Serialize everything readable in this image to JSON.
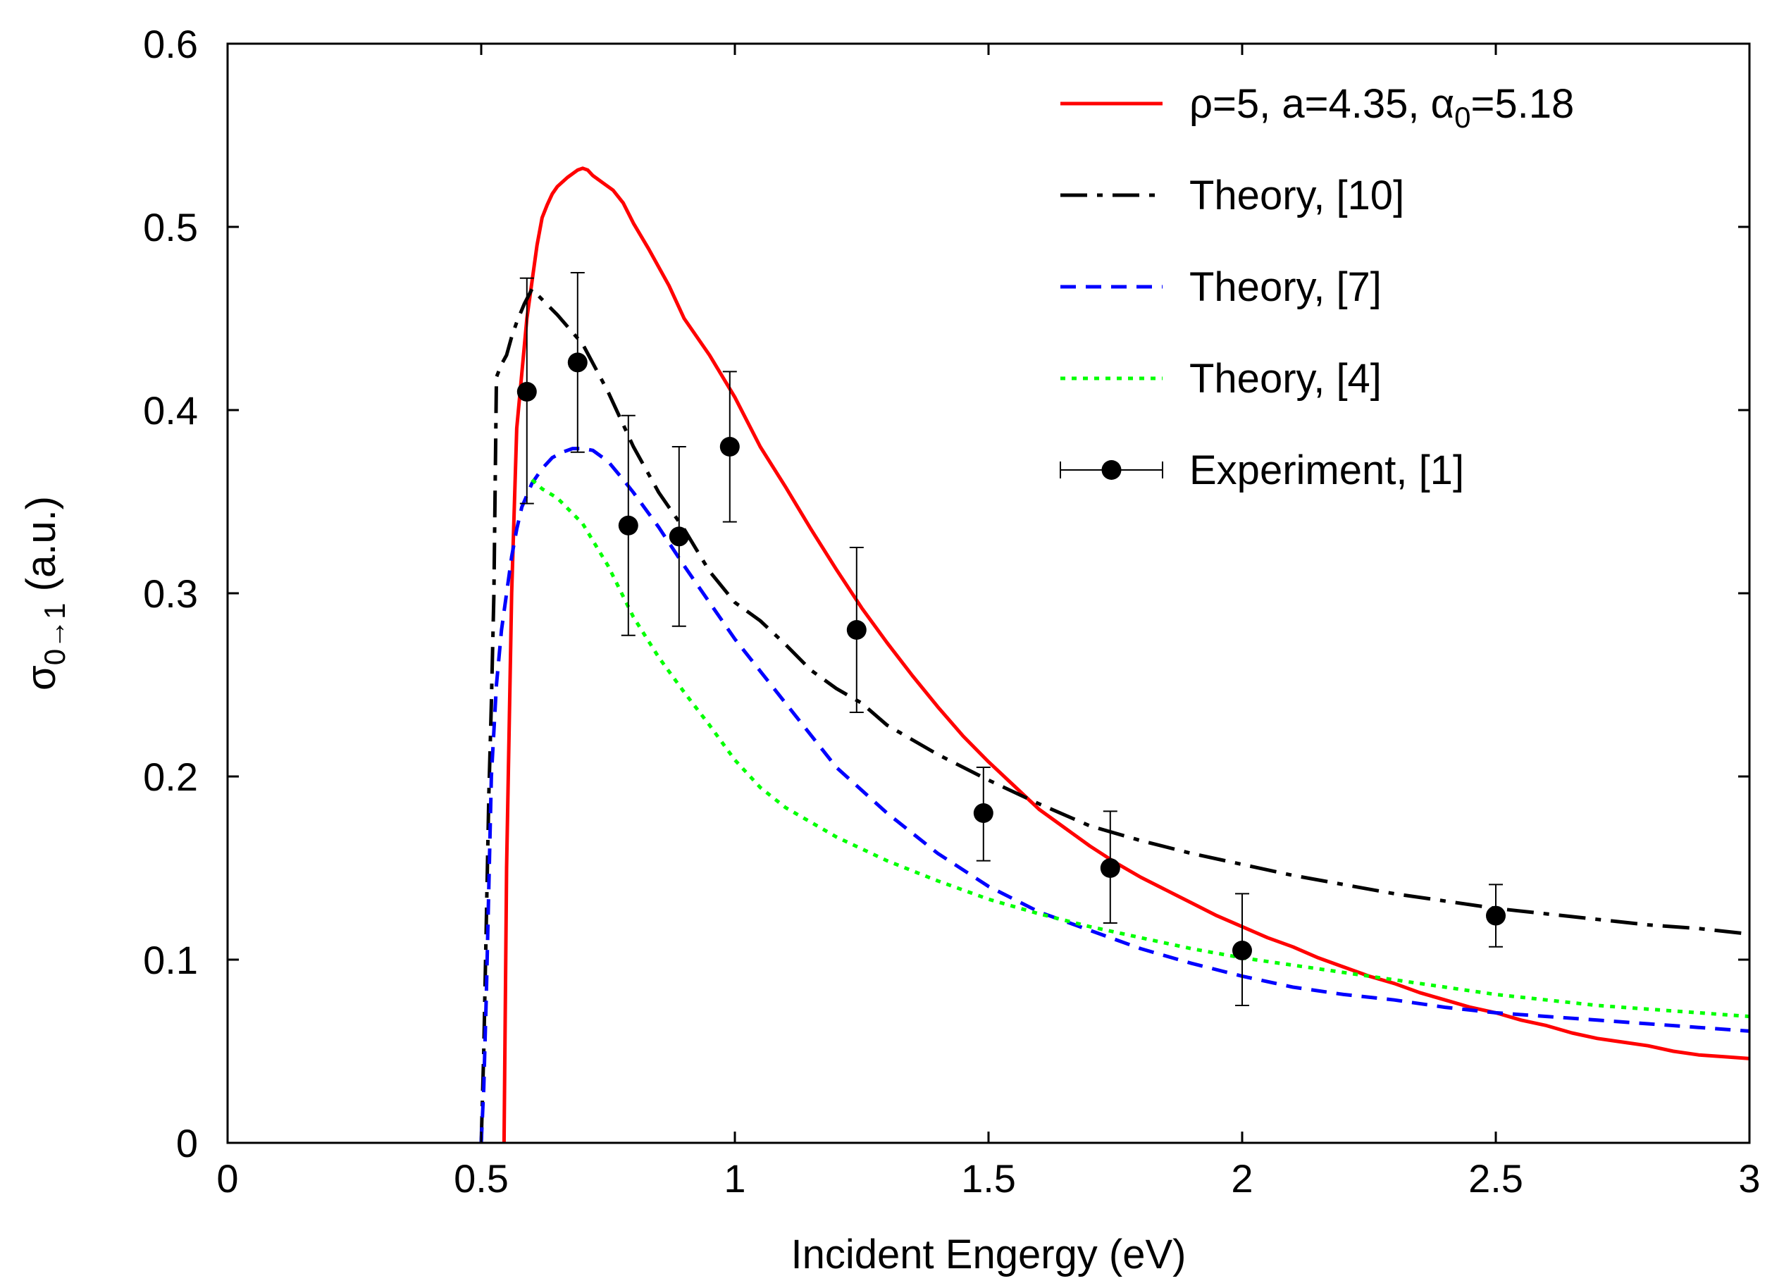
{
  "chart_data": {
    "type": "line",
    "title": "",
    "xlabel": "Incident Engergy (eV)",
    "ylabel": {
      "base": "σ",
      "sub": "0→1",
      "unit": " (a.u.)"
    },
    "xlim": [
      0,
      3
    ],
    "ylim": [
      0,
      0.6
    ],
    "x_ticks": [
      0,
      0.5,
      1,
      1.5,
      2,
      2.5,
      3
    ],
    "x_tick_labels": [
      "0",
      "0.5",
      "1",
      "1.5",
      "2",
      "2.5",
      "3"
    ],
    "y_ticks": [
      0,
      0.1,
      0.2,
      0.3,
      0.4,
      0.5,
      0.6
    ],
    "y_tick_labels": [
      "0",
      "0.1",
      "0.2",
      "0.3",
      "0.4",
      "0.5",
      "0.6"
    ],
    "grid": false,
    "legend_position": "top-right",
    "series": [
      {
        "name": "ρ=5, a=4.35, α0=5.18",
        "legend": {
          "parts": [
            {
              "text": "ρ=5, a=4.35, α",
              "sub": false
            },
            {
              "text": "0",
              "sub": true
            },
            {
              "text": "=5.18",
              "sub": false
            }
          ]
        },
        "style": "solid",
        "color": "#ff0000",
        "x": [
          0.545,
          0.55,
          0.56,
          0.57,
          0.58,
          0.59,
          0.6,
          0.61,
          0.62,
          0.63,
          0.64,
          0.65,
          0.67,
          0.69,
          0.7,
          0.71,
          0.72,
          0.74,
          0.76,
          0.78,
          0.8,
          0.83,
          0.87,
          0.9,
          0.95,
          1.0,
          1.05,
          1.1,
          1.15,
          1.2,
          1.25,
          1.3,
          1.35,
          1.4,
          1.45,
          1.5,
          1.55,
          1.6,
          1.65,
          1.7,
          1.75,
          1.8,
          1.85,
          1.9,
          1.95,
          2.0,
          2.05,
          2.1,
          2.15,
          2.2,
          2.25,
          2.3,
          2.35,
          2.4,
          2.45,
          2.5,
          2.55,
          2.6,
          2.65,
          2.7,
          2.75,
          2.8,
          2.85,
          2.9,
          2.95,
          3.0
        ],
        "y": [
          0.0,
          0.15,
          0.3,
          0.39,
          0.42,
          0.45,
          0.47,
          0.49,
          0.505,
          0.512,
          0.518,
          0.522,
          0.527,
          0.531,
          0.532,
          0.531,
          0.528,
          0.524,
          0.52,
          0.513,
          0.502,
          0.488,
          0.468,
          0.45,
          0.43,
          0.407,
          0.38,
          0.358,
          0.335,
          0.313,
          0.292,
          0.273,
          0.255,
          0.238,
          0.222,
          0.208,
          0.195,
          0.182,
          0.172,
          0.162,
          0.153,
          0.145,
          0.138,
          0.131,
          0.124,
          0.118,
          0.112,
          0.107,
          0.101,
          0.096,
          0.091,
          0.087,
          0.082,
          0.078,
          0.074,
          0.071,
          0.067,
          0.064,
          0.06,
          0.057,
          0.055,
          0.053,
          0.05,
          0.048,
          0.047,
          0.046
        ]
      },
      {
        "name": "Theory, [10]",
        "legend": {
          "parts": [
            {
              "text": "Theory, [10]",
              "sub": false
            }
          ]
        },
        "style": "dashdot",
        "color": "#000000",
        "x": [
          0.5,
          0.505,
          0.51,
          0.515,
          0.52,
          0.525,
          0.53,
          0.54,
          0.55,
          0.56,
          0.57,
          0.585,
          0.6,
          0.65,
          0.7,
          0.75,
          0.8,
          0.85,
          0.9,
          0.95,
          1.0,
          1.05,
          1.1,
          1.15,
          1.2,
          1.25,
          1.3,
          1.4,
          1.5,
          1.6,
          1.7,
          1.8,
          1.9,
          2.0,
          2.1,
          2.2,
          2.3,
          2.4,
          2.5,
          2.6,
          2.7,
          2.8,
          2.9,
          3.0
        ],
        "y": [
          0.0,
          0.05,
          0.12,
          0.19,
          0.24,
          0.3,
          0.418,
          0.425,
          0.43,
          0.44,
          0.448,
          0.458,
          0.466,
          0.452,
          0.436,
          0.41,
          0.38,
          0.355,
          0.335,
          0.312,
          0.295,
          0.285,
          0.272,
          0.258,
          0.248,
          0.24,
          0.228,
          0.212,
          0.198,
          0.185,
          0.173,
          0.165,
          0.158,
          0.152,
          0.146,
          0.141,
          0.136,
          0.132,
          0.128,
          0.125,
          0.122,
          0.119,
          0.117,
          0.114
        ]
      },
      {
        "name": "Theory, [7]",
        "legend": {
          "parts": [
            {
              "text": "Theory, [7]",
              "sub": false
            }
          ]
        },
        "style": "dashed",
        "color": "#0000ff",
        "x": [
          0.5,
          0.505,
          0.51,
          0.52,
          0.53,
          0.54,
          0.55,
          0.56,
          0.57,
          0.58,
          0.6,
          0.62,
          0.64,
          0.66,
          0.68,
          0.7,
          0.72,
          0.75,
          0.78,
          0.8,
          0.85,
          0.9,
          0.95,
          1.0,
          1.1,
          1.2,
          1.3,
          1.4,
          1.5,
          1.6,
          1.7,
          1.8,
          1.9,
          2.0,
          2.1,
          2.2,
          2.3,
          2.4,
          2.5,
          2.6,
          2.7,
          2.8,
          2.9,
          3.0
        ],
        "y": [
          0.0,
          0.03,
          0.08,
          0.2,
          0.25,
          0.28,
          0.3,
          0.32,
          0.335,
          0.347,
          0.36,
          0.368,
          0.374,
          0.377,
          0.379,
          0.379,
          0.378,
          0.372,
          0.362,
          0.355,
          0.336,
          0.315,
          0.295,
          0.275,
          0.24,
          0.205,
          0.18,
          0.158,
          0.14,
          0.126,
          0.116,
          0.106,
          0.098,
          0.091,
          0.085,
          0.081,
          0.078,
          0.074,
          0.071,
          0.069,
          0.067,
          0.065,
          0.063,
          0.061
        ]
      },
      {
        "name": "Theory, [4]",
        "legend": {
          "parts": [
            {
              "text": "Theory, [4]",
              "sub": false
            }
          ]
        },
        "style": "dotted",
        "color": "#00ff00",
        "x": [
          0.6,
          0.62,
          0.65,
          0.7,
          0.75,
          0.8,
          0.85,
          0.9,
          0.95,
          1.0,
          1.05,
          1.1,
          1.2,
          1.3,
          1.4,
          1.5,
          1.6,
          1.7,
          1.8,
          1.9,
          2.0,
          2.1,
          2.2,
          2.3,
          2.4,
          2.5,
          2.6,
          2.7,
          2.8,
          2.9,
          3.0
        ],
        "y": [
          0.362,
          0.357,
          0.352,
          0.338,
          0.315,
          0.287,
          0.265,
          0.246,
          0.228,
          0.209,
          0.194,
          0.183,
          0.167,
          0.154,
          0.143,
          0.133,
          0.125,
          0.118,
          0.112,
          0.106,
          0.101,
          0.097,
          0.093,
          0.089,
          0.085,
          0.081,
          0.078,
          0.075,
          0.073,
          0.071,
          0.069
        ]
      }
    ],
    "experiment": {
      "name": "Experiment, [1]",
      "legend": {
        "parts": [
          {
            "text": "Experiment, [1]",
            "sub": false
          }
        ]
      },
      "color": "#000000",
      "points": [
        {
          "x": 0.59,
          "y": 0.41,
          "ylow": 0.349,
          "yhigh": 0.472
        },
        {
          "x": 0.69,
          "y": 0.426,
          "ylow": 0.377,
          "yhigh": 0.475
        },
        {
          "x": 0.79,
          "y": 0.337,
          "ylow": 0.277,
          "yhigh": 0.397
        },
        {
          "x": 0.89,
          "y": 0.331,
          "ylow": 0.282,
          "yhigh": 0.38
        },
        {
          "x": 0.99,
          "y": 0.38,
          "ylow": 0.339,
          "yhigh": 0.421
        },
        {
          "x": 1.24,
          "y": 0.28,
          "ylow": 0.235,
          "yhigh": 0.325
        },
        {
          "x": 1.49,
          "y": 0.18,
          "ylow": 0.154,
          "yhigh": 0.205
        },
        {
          "x": 1.74,
          "y": 0.15,
          "ylow": 0.12,
          "yhigh": 0.181
        },
        {
          "x": 2.0,
          "y": 0.105,
          "ylow": 0.075,
          "yhigh": 0.136
        },
        {
          "x": 2.5,
          "y": 0.124,
          "ylow": 0.107,
          "yhigh": 0.141
        }
      ]
    }
  }
}
